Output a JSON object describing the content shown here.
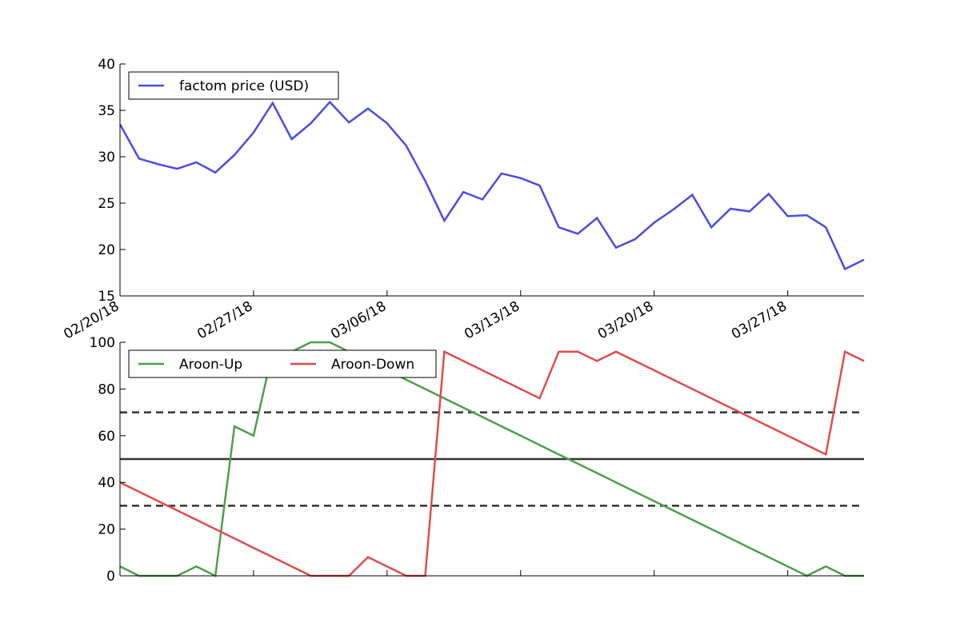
{
  "chart_data": [
    {
      "type": "line",
      "x_ticks": [
        "02/20/18",
        "02/27/18",
        "03/06/18",
        "03/13/18",
        "03/20/18",
        "03/27/18"
      ],
      "y_ticks": [
        "15",
        "20",
        "25",
        "30",
        "35",
        "40"
      ],
      "ylim": [
        15,
        40
      ],
      "series": [
        {
          "name": "factom price (USD)",
          "color": "#4c4ce0",
          "x": [
            "2018-02-20",
            "2018-02-21",
            "2018-02-22",
            "2018-02-23",
            "2018-02-24",
            "2018-02-25",
            "2018-02-26",
            "2018-02-27",
            "2018-02-28",
            "2018-03-01",
            "2018-03-02",
            "2018-03-03",
            "2018-03-04",
            "2018-03-05",
            "2018-03-06",
            "2018-03-07",
            "2018-03-08",
            "2018-03-09",
            "2018-03-10",
            "2018-03-11",
            "2018-03-12",
            "2018-03-13",
            "2018-03-14",
            "2018-03-15",
            "2018-03-16",
            "2018-03-17",
            "2018-03-18",
            "2018-03-19",
            "2018-03-20",
            "2018-03-21",
            "2018-03-22",
            "2018-03-23",
            "2018-03-24",
            "2018-03-25",
            "2018-03-26",
            "2018-03-27",
            "2018-03-28",
            "2018-03-29",
            "2018-03-30",
            "2018-03-31"
          ],
          "values": [
            33.5,
            29.8,
            29.2,
            28.7,
            29.4,
            28.3,
            30.2,
            32.6,
            35.8,
            31.9,
            33.6,
            35.9,
            33.7,
            35.2,
            33.6,
            31.2,
            27.4,
            23.1,
            26.2,
            25.4,
            28.2,
            27.7,
            26.9,
            22.4,
            21.7,
            23.4,
            20.2,
            21.1,
            22.9,
            24.3,
            25.9,
            22.4,
            24.4,
            24.1,
            26.0,
            23.6,
            23.7,
            22.4,
            17.9,
            18.9
          ]
        }
      ],
      "legend": "upper-left"
    },
    {
      "type": "line",
      "x_ticks": [],
      "y_ticks": [
        "0",
        "20",
        "40",
        "60",
        "80",
        "100"
      ],
      "ylim": [
        0,
        100
      ],
      "series": [
        {
          "name": "Aroon-Up",
          "color": "#4e9e4e",
          "x": [
            "2018-02-20",
            "2018-02-21",
            "2018-02-22",
            "2018-02-23",
            "2018-02-24",
            "2018-02-25",
            "2018-02-26",
            "2018-02-27",
            "2018-02-28",
            "2018-03-01",
            "2018-03-02",
            "2018-03-03",
            "2018-03-04",
            "2018-03-05",
            "2018-03-06",
            "2018-03-07",
            "2018-03-08",
            "2018-03-09",
            "2018-03-10",
            "2018-03-11",
            "2018-03-12",
            "2018-03-13",
            "2018-03-14",
            "2018-03-15",
            "2018-03-16",
            "2018-03-17",
            "2018-03-18",
            "2018-03-19",
            "2018-03-20",
            "2018-03-21",
            "2018-03-22",
            "2018-03-23",
            "2018-03-24",
            "2018-03-25",
            "2018-03-26",
            "2018-03-27",
            "2018-03-28",
            "2018-03-29",
            "2018-03-30",
            "2018-03-31"
          ],
          "values": [
            4,
            0,
            0,
            0,
            4,
            0,
            64,
            60,
            96,
            96,
            100,
            100,
            96,
            92,
            88,
            84,
            80,
            76,
            72,
            68,
            64,
            60,
            56,
            52,
            48,
            44,
            40,
            36,
            32,
            28,
            24,
            20,
            16,
            12,
            8,
            4,
            0,
            4,
            0,
            0
          ]
        },
        {
          "name": "Aroon-Down",
          "color": "#e04c4c",
          "x": [
            "2018-02-20",
            "2018-02-21",
            "2018-02-22",
            "2018-02-23",
            "2018-02-24",
            "2018-02-25",
            "2018-02-26",
            "2018-02-27",
            "2018-02-28",
            "2018-03-01",
            "2018-03-02",
            "2018-03-03",
            "2018-03-04",
            "2018-03-05",
            "2018-03-06",
            "2018-03-07",
            "2018-03-08",
            "2018-03-09",
            "2018-03-10",
            "2018-03-11",
            "2018-03-12",
            "2018-03-13",
            "2018-03-14",
            "2018-03-15",
            "2018-03-16",
            "2018-03-17",
            "2018-03-18",
            "2018-03-19",
            "2018-03-20",
            "2018-03-21",
            "2018-03-22",
            "2018-03-23",
            "2018-03-24",
            "2018-03-25",
            "2018-03-26",
            "2018-03-27",
            "2018-03-28",
            "2018-03-29",
            "2018-03-30",
            "2018-03-31"
          ],
          "values": [
            40,
            36,
            32,
            28,
            24,
            20,
            16,
            12,
            8,
            4,
            0,
            0,
            0,
            8,
            4,
            0,
            0,
            96,
            92,
            88,
            84,
            80,
            76,
            96,
            96,
            92,
            96,
            92,
            88,
            84,
            80,
            76,
            72,
            68,
            64,
            60,
            56,
            52,
            96,
            92
          ]
        }
      ],
      "reference_lines": [
        {
          "y": 70,
          "style": "dashed",
          "color": "#333333"
        },
        {
          "y": 50,
          "style": "solid",
          "color": "#333333"
        },
        {
          "y": 30,
          "style": "dashed",
          "color": "#333333"
        }
      ],
      "legend": "upper-left"
    }
  ]
}
